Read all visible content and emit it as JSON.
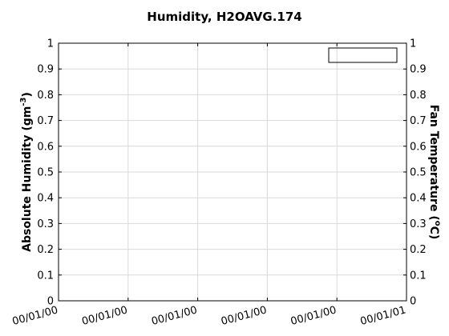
{
  "chart_data": {
    "type": "line",
    "title": "Humidity, H2OAVG.174",
    "ylabel_left": "Absolute Humidity (gm-3)",
    "ylabel_left_base": "Absolute Humidity (gm",
    "ylabel_left_sup": "-3",
    "ylabel_left_end": ")",
    "ylabel_right": "Fan Temperature (°C)",
    "ylabel_right_base": "Fan Temperature (",
    "ylabel_right_sup": "o",
    "ylabel_right_end": "C)",
    "ylim": [
      0,
      1
    ],
    "ylim_right": [
      0,
      1
    ],
    "yticks": [
      "0",
      "0.1",
      "0.2",
      "0.3",
      "0.4",
      "0.5",
      "0.6",
      "0.7",
      "0.8",
      "0.9",
      "1"
    ],
    "xticks": [
      "00/01/00",
      "00/01/00",
      "00/01/00",
      "00/01/00",
      "00/01/00",
      "00/01/01"
    ],
    "grid": true,
    "legend": {
      "placement": "top-right",
      "entries": []
    },
    "series": []
  }
}
